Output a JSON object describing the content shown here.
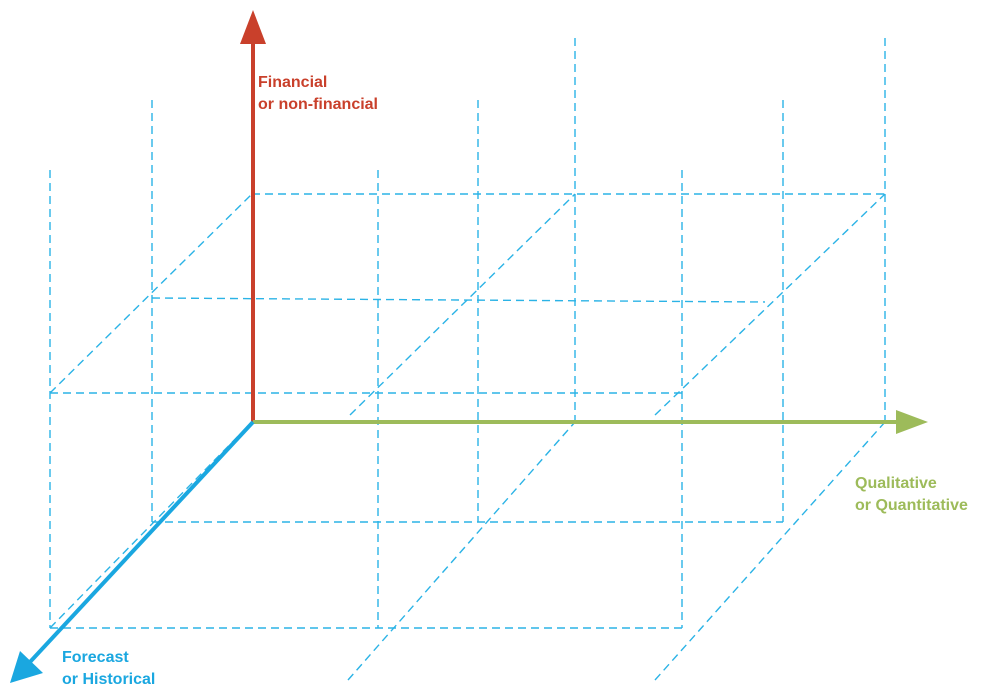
{
  "diagram": {
    "colors": {
      "grid": "#2bb3e6",
      "vertical_axis": "#c9402b",
      "horizontal_axis": "#9dbb5a",
      "depth_axis": "#1aa7e0"
    },
    "axes": {
      "vertical": {
        "line1": "Financial",
        "line2": "or non-financial"
      },
      "horizontal": {
        "line1": "Qualitative",
        "line2": "or Quantitative"
      },
      "depth": {
        "line1": "Forecast",
        "line2": "or Historical"
      }
    }
  }
}
